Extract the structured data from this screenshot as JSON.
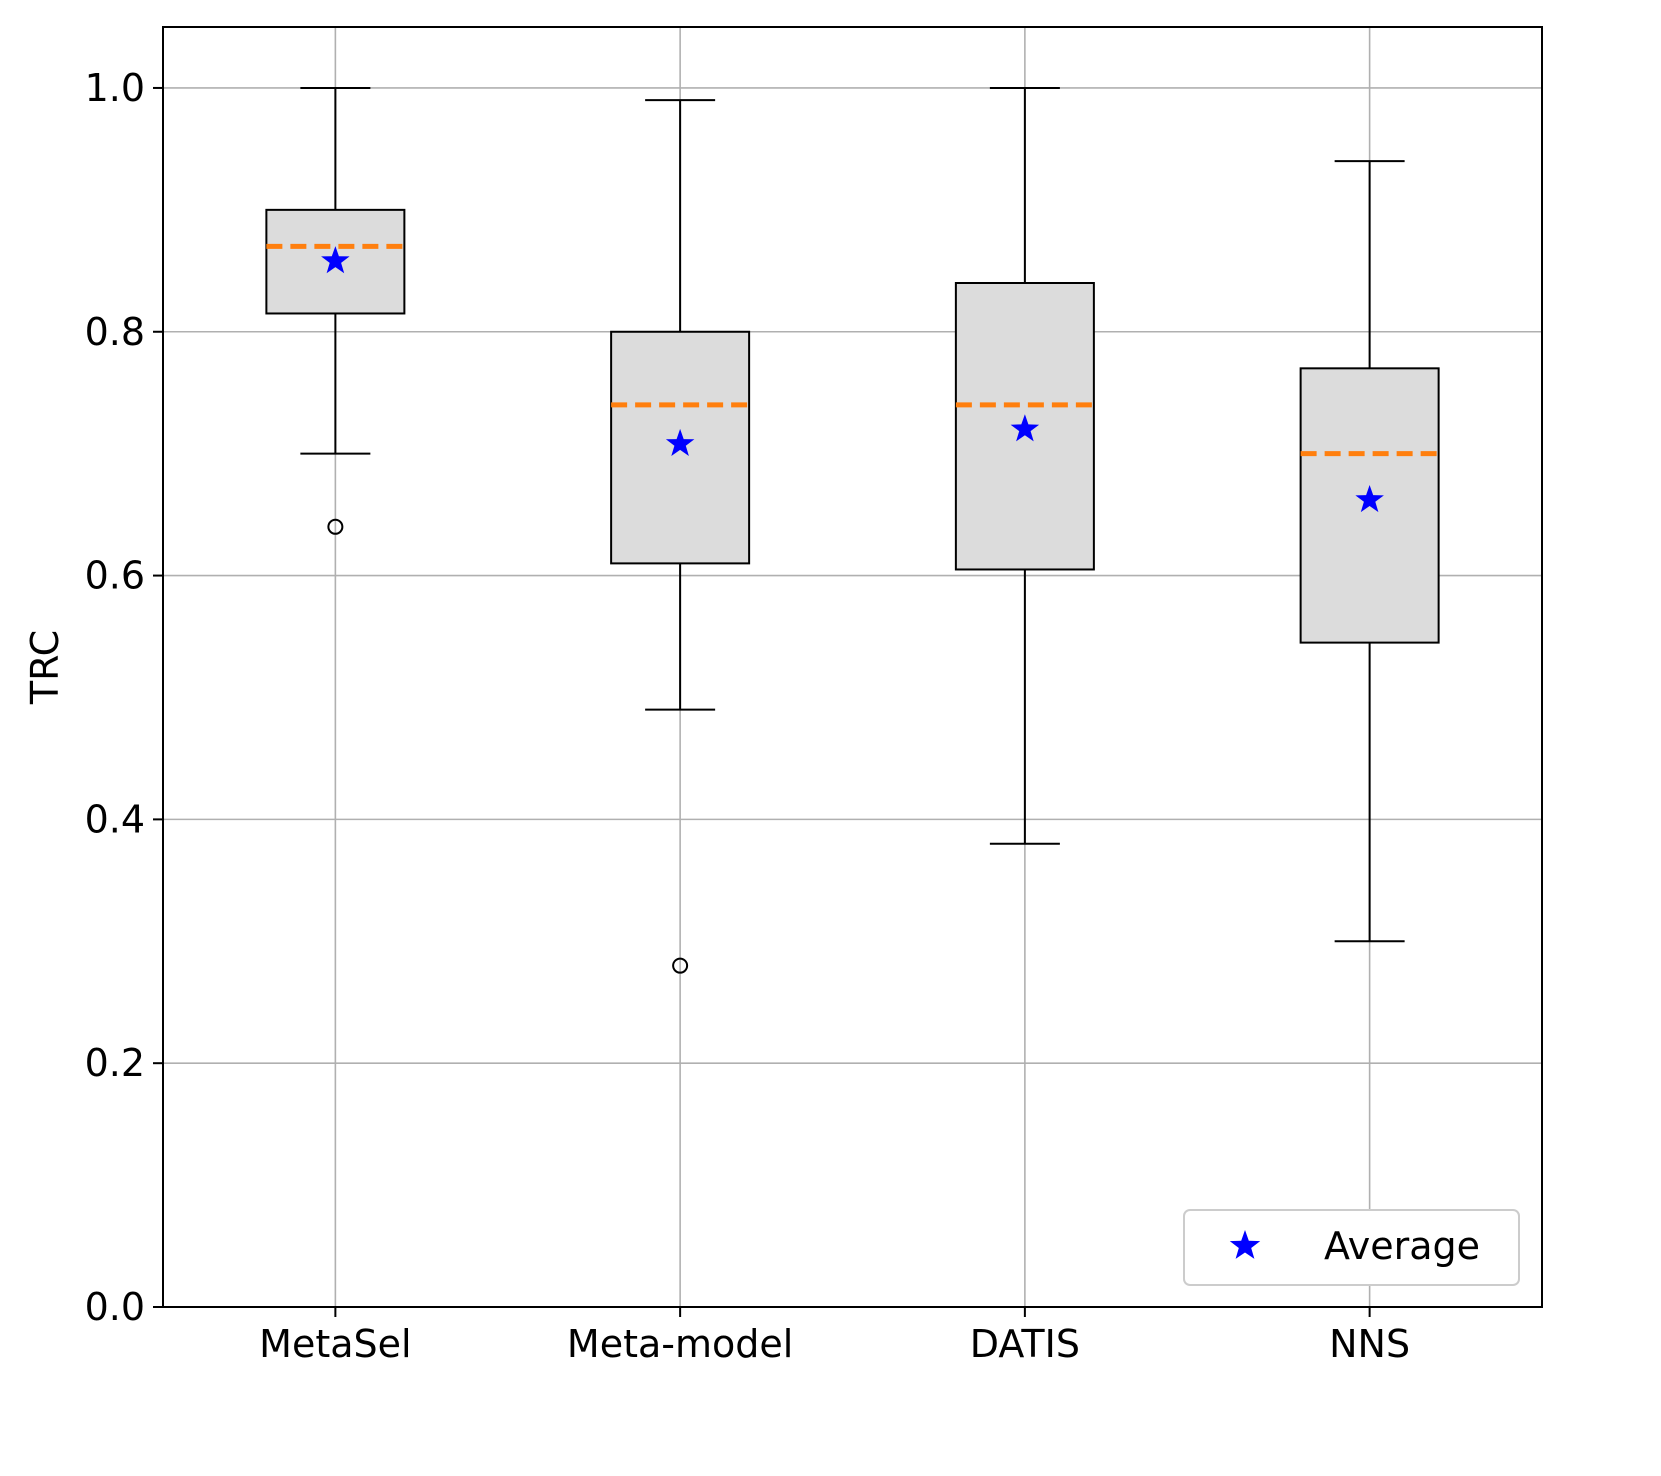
{
  "chart_data": {
    "type": "box",
    "title": "",
    "xlabel": "",
    "ylabel": "TRC",
    "ylim": [
      0.0,
      1.05
    ],
    "yticks": [
      0.0,
      0.2,
      0.4,
      0.6,
      0.8,
      1.0
    ],
    "ytick_labels": [
      "0.0",
      "0.2",
      "0.4",
      "0.6",
      "0.8",
      "1.0"
    ],
    "grid": true,
    "categories": [
      "MetaSel",
      "Meta-model",
      "DATIS",
      "NNS"
    ],
    "boxes": [
      {
        "name": "MetaSel",
        "whisker_low": 0.7,
        "q1": 0.815,
        "median": 0.87,
        "q3": 0.9,
        "whisker_high": 1.0,
        "mean": 0.858,
        "outliers": [
          0.64
        ]
      },
      {
        "name": "Meta-model",
        "whisker_low": 0.49,
        "q1": 0.61,
        "median": 0.74,
        "q3": 0.8,
        "whisker_high": 0.99,
        "mean": 0.708,
        "outliers": [
          0.28
        ]
      },
      {
        "name": "DATIS",
        "whisker_low": 0.38,
        "q1": 0.605,
        "median": 0.74,
        "q3": 0.84,
        "whisker_high": 1.0,
        "mean": 0.72,
        "outliers": []
      },
      {
        "name": "NNS",
        "whisker_low": 0.3,
        "q1": 0.545,
        "median": 0.7,
        "q3": 0.77,
        "whisker_high": 0.94,
        "mean": 0.662,
        "outliers": []
      }
    ],
    "legend": {
      "position": "bottom-right",
      "entries": [
        {
          "label": "Average",
          "marker": "star"
        }
      ]
    },
    "colors": {
      "box_fill": "#dcdcdc",
      "median": "#ff7f0e",
      "mean": "#0000ff",
      "grid": "#b0b0b0"
    }
  }
}
